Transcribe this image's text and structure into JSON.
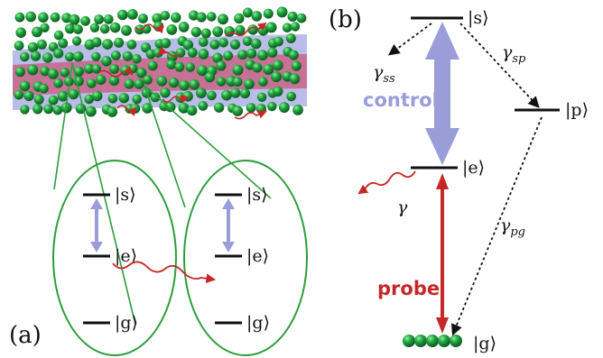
{
  "panel_labels": {
    "a": "(a)",
    "b": "(b)"
  },
  "levels": {
    "s": "|s⟩",
    "e": "|e⟩",
    "g": "|g⟩",
    "p": "|p⟩"
  },
  "rates": {
    "gamma": "γ",
    "gamma_ss": {
      "base": "γ",
      "sub": "ss"
    },
    "gamma_sp": {
      "base": "γ",
      "sub": "sp"
    },
    "gamma_pg": {
      "base": "γ",
      "sub": "pg"
    }
  },
  "beams": {
    "control": "control",
    "probe": "probe"
  },
  "colors": {
    "atom": "#1e8e3e",
    "atom_highlight": "#7fe08f",
    "control": "#9a9dd8",
    "probe": "#c62828",
    "probe_beam": "#c9587a",
    "outer_beam": "#b2b6e6",
    "ellipse": "#2e9e3e",
    "decay": "#c62828"
  }
}
